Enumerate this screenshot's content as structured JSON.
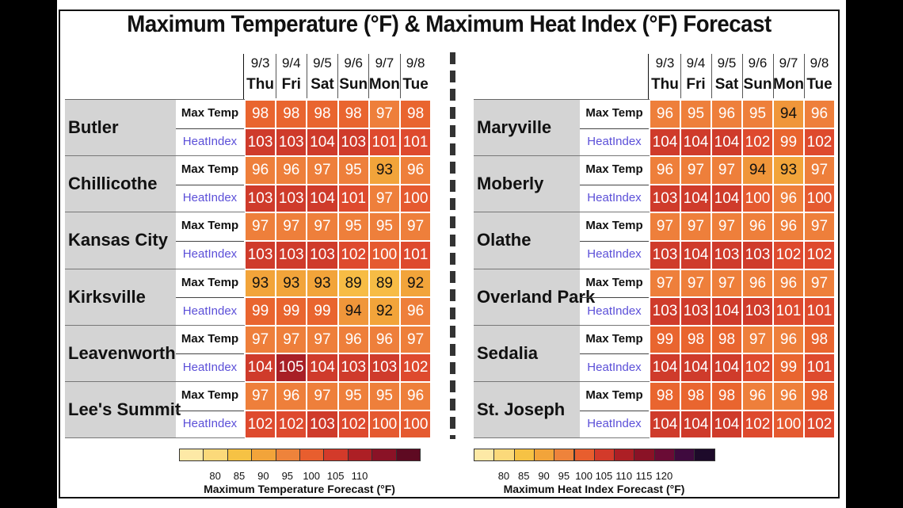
{
  "title": "Maximum Temperature (°F) & Maximum Heat Index (°F) Forecast",
  "chart_data": {
    "type": "table",
    "title": "Maximum Temperature (°F) & Maximum Heat Index (°F) Forecast",
    "dates": [
      "9/3",
      "9/4",
      "9/5",
      "9/6",
      "9/7",
      "9/8"
    ],
    "days": [
      "Thu",
      "Fri",
      "Sat",
      "Sun",
      "Mon",
      "Tue"
    ],
    "row_labels": {
      "max_temp": "Max Temp",
      "heat_index": "HeatIndex"
    },
    "panels": [
      {
        "cities": [
          {
            "name": "Butler",
            "max_temp": [
              98,
              98,
              98,
              98,
              97,
              98
            ],
            "heat_index": [
              103,
              103,
              104,
              103,
              101,
              101
            ]
          },
          {
            "name": "Chillicothe",
            "max_temp": [
              96,
              96,
              97,
              95,
              93,
              96
            ],
            "heat_index": [
              103,
              103,
              104,
              101,
              97,
              100
            ]
          },
          {
            "name": "Kansas City",
            "max_temp": [
              97,
              97,
              97,
              95,
              95,
              97
            ],
            "heat_index": [
              103,
              103,
              103,
              102,
              100,
              101
            ]
          },
          {
            "name": "Kirksville",
            "max_temp": [
              93,
              93,
              93,
              89,
              89,
              92
            ],
            "heat_index": [
              99,
              99,
              99,
              94,
              92,
              96
            ]
          },
          {
            "name": "Leavenworth",
            "max_temp": [
              97,
              97,
              97,
              96,
              96,
              97
            ],
            "heat_index": [
              104,
              105,
              104,
              103,
              103,
              102
            ]
          },
          {
            "name": "Lee's Summit",
            "max_temp": [
              97,
              96,
              97,
              95,
              95,
              96
            ],
            "heat_index": [
              102,
              102,
              103,
              102,
              100,
              100
            ]
          }
        ]
      },
      {
        "cities": [
          {
            "name": "Maryville",
            "max_temp": [
              96,
              95,
              96,
              95,
              94,
              96
            ],
            "heat_index": [
              104,
              104,
              104,
              102,
              99,
              102
            ]
          },
          {
            "name": "Moberly",
            "max_temp": [
              96,
              97,
              97,
              94,
              93,
              97
            ],
            "heat_index": [
              103,
              104,
              104,
              100,
              96,
              100
            ]
          },
          {
            "name": "Olathe",
            "max_temp": [
              97,
              97,
              97,
              96,
              96,
              97
            ],
            "heat_index": [
              103,
              104,
              103,
              103,
              102,
              102
            ]
          },
          {
            "name": "Overland Park",
            "max_temp": [
              97,
              97,
              97,
              96,
              96,
              97
            ],
            "heat_index": [
              103,
              103,
              104,
              103,
              101,
              101
            ]
          },
          {
            "name": "Sedalia",
            "max_temp": [
              99,
              98,
              98,
              97,
              96,
              98
            ],
            "heat_index": [
              104,
              104,
              104,
              102,
              99,
              101
            ]
          },
          {
            "name": "St. Joseph",
            "max_temp": [
              98,
              98,
              98,
              96,
              96,
              98
            ],
            "heat_index": [
              104,
              104,
              104,
              102,
              100,
              102
            ]
          }
        ]
      }
    ],
    "legends": [
      {
        "title": "Maximum Temperature Forecast (°F)",
        "ticks": [
          "80",
          "85",
          "90",
          "95",
          "100",
          "105",
          "110"
        ],
        "colors": [
          "#fde9a6",
          "#fbd97a",
          "#f6c244",
          "#f2a43a",
          "#ee833b",
          "#e85e2e",
          "#d33a2a",
          "#ad1f25",
          "#8a1226",
          "#5e0a22"
        ]
      },
      {
        "title": "Maximum Heat Index Forecast (°F)",
        "ticks": [
          "80",
          "85",
          "90",
          "95",
          "100",
          "105",
          "110",
          "115",
          "120"
        ],
        "colors": [
          "#fde9a6",
          "#fbd97a",
          "#f6c244",
          "#f2a43a",
          "#ee833b",
          "#e85e2e",
          "#d33a2a",
          "#ad1f25",
          "#8a1226",
          "#6a0b35",
          "#3f0a3e",
          "#1d0a2a"
        ]
      }
    ],
    "color_scale": [
      {
        "min": 86,
        "max": 90,
        "color": "#f7bc45"
      },
      {
        "min": 91,
        "max": 93,
        "color": "#f2a43a"
      },
      {
        "min": 94,
        "max": 94,
        "color": "#f0963a"
      },
      {
        "min": 95,
        "max": 97,
        "color": "#ee7f3b"
      },
      {
        "min": 98,
        "max": 99,
        "color": "#e9652f"
      },
      {
        "min": 100,
        "max": 100,
        "color": "#e55a30"
      },
      {
        "min": 101,
        "max": 102,
        "color": "#de4a2e"
      },
      {
        "min": 103,
        "max": 104,
        "color": "#cf3b2b"
      },
      {
        "min": 105,
        "max": 107,
        "color": "#a81f26"
      }
    ]
  }
}
